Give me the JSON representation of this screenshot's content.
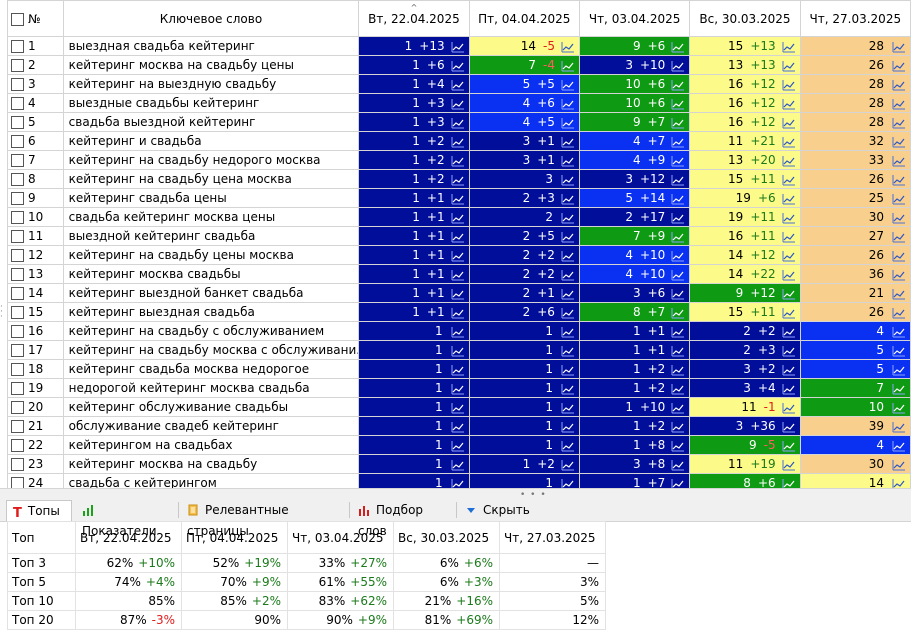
{
  "header": {
    "num_label": "№",
    "keyword_label": "Ключевое слово",
    "dates": [
      "Вт, 22.04.2025",
      "Пт, 04.04.2025",
      "Чт, 03.04.2025",
      "Вс, 30.03.2025",
      "Чт, 27.03.2025"
    ],
    "sort_icon": "sort-up-icon"
  },
  "colors": {
    "darkblue": "#000e9a",
    "blue": "#0a30f2",
    "green": "#0e9b13",
    "yellow": "#fcfb89",
    "orange": "#f8cf8d",
    "change_up": "#1b7a1b",
    "change_down": "#e01b1b"
  },
  "rows": [
    {
      "n": "1",
      "kw": "выездная свадьба кейтеринг",
      "cells": [
        {
          "v": "1",
          "c": "+13",
          "s": "darkblue"
        },
        {
          "v": "14",
          "c": "-5",
          "s": "yellow"
        },
        {
          "v": "9",
          "c": "+6",
          "s": "green"
        },
        {
          "v": "15",
          "c": "+13",
          "s": "yellow"
        },
        {
          "v": "28",
          "c": "",
          "s": "orange"
        }
      ]
    },
    {
      "n": "2",
      "kw": "кейтеринг москва на свадьбу цены",
      "cells": [
        {
          "v": "1",
          "c": "+6",
          "s": "darkblue"
        },
        {
          "v": "7",
          "c": "-4",
          "s": "green"
        },
        {
          "v": "3",
          "c": "+10",
          "s": "darkblue"
        },
        {
          "v": "13",
          "c": "+13",
          "s": "yellow"
        },
        {
          "v": "26",
          "c": "",
          "s": "orange"
        }
      ]
    },
    {
      "n": "3",
      "kw": "кейтеринг на выездную свадьбу",
      "cells": [
        {
          "v": "1",
          "c": "+4",
          "s": "darkblue"
        },
        {
          "v": "5",
          "c": "+5",
          "s": "blue"
        },
        {
          "v": "10",
          "c": "+6",
          "s": "green"
        },
        {
          "v": "16",
          "c": "+12",
          "s": "yellow"
        },
        {
          "v": "28",
          "c": "",
          "s": "orange"
        }
      ]
    },
    {
      "n": "4",
      "kw": "выездные свадьбы кейтеринг",
      "cells": [
        {
          "v": "1",
          "c": "+3",
          "s": "darkblue"
        },
        {
          "v": "4",
          "c": "+6",
          "s": "blue"
        },
        {
          "v": "10",
          "c": "+6",
          "s": "green"
        },
        {
          "v": "16",
          "c": "+12",
          "s": "yellow"
        },
        {
          "v": "28",
          "c": "",
          "s": "orange"
        }
      ]
    },
    {
      "n": "5",
      "kw": "свадьба выездной кейтеринг",
      "cells": [
        {
          "v": "1",
          "c": "+3",
          "s": "darkblue"
        },
        {
          "v": "4",
          "c": "+5",
          "s": "blue"
        },
        {
          "v": "9",
          "c": "+7",
          "s": "green"
        },
        {
          "v": "16",
          "c": "+12",
          "s": "yellow"
        },
        {
          "v": "28",
          "c": "",
          "s": "orange"
        }
      ]
    },
    {
      "n": "6",
      "kw": "кейтеринг и свадьба",
      "cells": [
        {
          "v": "1",
          "c": "+2",
          "s": "darkblue"
        },
        {
          "v": "3",
          "c": "+1",
          "s": "darkblue"
        },
        {
          "v": "4",
          "c": "+7",
          "s": "blue"
        },
        {
          "v": "11",
          "c": "+21",
          "s": "yellow"
        },
        {
          "v": "32",
          "c": "",
          "s": "orange"
        }
      ]
    },
    {
      "n": "7",
      "kw": "кейтеринг на свадьбу недорого москва",
      "cells": [
        {
          "v": "1",
          "c": "+2",
          "s": "darkblue"
        },
        {
          "v": "3",
          "c": "+1",
          "s": "darkblue"
        },
        {
          "v": "4",
          "c": "+9",
          "s": "blue"
        },
        {
          "v": "13",
          "c": "+20",
          "s": "yellow"
        },
        {
          "v": "33",
          "c": "",
          "s": "orange"
        }
      ]
    },
    {
      "n": "8",
      "kw": "кейтеринг на свадьбу цена москва",
      "cells": [
        {
          "v": "1",
          "c": "+2",
          "s": "darkblue"
        },
        {
          "v": "3",
          "c": "",
          "s": "darkblue"
        },
        {
          "v": "3",
          "c": "+12",
          "s": "darkblue"
        },
        {
          "v": "15",
          "c": "+11",
          "s": "yellow"
        },
        {
          "v": "26",
          "c": "",
          "s": "orange"
        }
      ]
    },
    {
      "n": "9",
      "kw": "кейтеринг свадьба цены",
      "cells": [
        {
          "v": "1",
          "c": "+1",
          "s": "darkblue"
        },
        {
          "v": "2",
          "c": "+3",
          "s": "darkblue"
        },
        {
          "v": "5",
          "c": "+14",
          "s": "blue"
        },
        {
          "v": "19",
          "c": "+6",
          "s": "yellow"
        },
        {
          "v": "25",
          "c": "",
          "s": "orange"
        }
      ]
    },
    {
      "n": "10",
      "kw": "свадьба кейтеринг москва цены",
      "cells": [
        {
          "v": "1",
          "c": "+1",
          "s": "darkblue"
        },
        {
          "v": "2",
          "c": "",
          "s": "darkblue"
        },
        {
          "v": "2",
          "c": "+17",
          "s": "darkblue"
        },
        {
          "v": "19",
          "c": "+11",
          "s": "yellow"
        },
        {
          "v": "30",
          "c": "",
          "s": "orange"
        }
      ]
    },
    {
      "n": "11",
      "kw": "выездной кейтеринг свадьба",
      "cells": [
        {
          "v": "1",
          "c": "+1",
          "s": "darkblue"
        },
        {
          "v": "2",
          "c": "+5",
          "s": "darkblue"
        },
        {
          "v": "7",
          "c": "+9",
          "s": "green"
        },
        {
          "v": "16",
          "c": "+11",
          "s": "yellow"
        },
        {
          "v": "27",
          "c": "",
          "s": "orange"
        }
      ]
    },
    {
      "n": "12",
      "kw": "кейтеринг на свадьбу цены москва",
      "cells": [
        {
          "v": "1",
          "c": "+1",
          "s": "darkblue"
        },
        {
          "v": "2",
          "c": "+2",
          "s": "darkblue"
        },
        {
          "v": "4",
          "c": "+10",
          "s": "blue"
        },
        {
          "v": "14",
          "c": "+12",
          "s": "yellow"
        },
        {
          "v": "26",
          "c": "",
          "s": "orange"
        }
      ]
    },
    {
      "n": "13",
      "kw": "кейтеринг москва свадьбы",
      "cells": [
        {
          "v": "1",
          "c": "+1",
          "s": "darkblue"
        },
        {
          "v": "2",
          "c": "+2",
          "s": "darkblue"
        },
        {
          "v": "4",
          "c": "+10",
          "s": "blue"
        },
        {
          "v": "14",
          "c": "+22",
          "s": "yellow"
        },
        {
          "v": "36",
          "c": "",
          "s": "orange"
        }
      ]
    },
    {
      "n": "14",
      "kw": "кейтеринг выездной банкет свадьба",
      "cells": [
        {
          "v": "1",
          "c": "+1",
          "s": "darkblue"
        },
        {
          "v": "2",
          "c": "+1",
          "s": "darkblue"
        },
        {
          "v": "3",
          "c": "+6",
          "s": "darkblue"
        },
        {
          "v": "9",
          "c": "+12",
          "s": "green"
        },
        {
          "v": "21",
          "c": "",
          "s": "orange"
        }
      ]
    },
    {
      "n": "15",
      "kw": "кейтеринг выездная свадьба",
      "cells": [
        {
          "v": "1",
          "c": "+1",
          "s": "darkblue"
        },
        {
          "v": "2",
          "c": "+6",
          "s": "darkblue"
        },
        {
          "v": "8",
          "c": "+7",
          "s": "green"
        },
        {
          "v": "15",
          "c": "+11",
          "s": "yellow"
        },
        {
          "v": "26",
          "c": "",
          "s": "orange"
        }
      ]
    },
    {
      "n": "16",
      "kw": "кейтеринг на свадьбу с обслуживанием",
      "cells": [
        {
          "v": "1",
          "c": "",
          "s": "darkblue"
        },
        {
          "v": "1",
          "c": "",
          "s": "darkblue"
        },
        {
          "v": "1",
          "c": "+1",
          "s": "darkblue"
        },
        {
          "v": "2",
          "c": "+2",
          "s": "darkblue"
        },
        {
          "v": "4",
          "c": "",
          "s": "blue"
        }
      ]
    },
    {
      "n": "17",
      "kw": "кейтеринг на свадьбу москва с обслуживани...",
      "cells": [
        {
          "v": "1",
          "c": "",
          "s": "darkblue"
        },
        {
          "v": "1",
          "c": "",
          "s": "darkblue"
        },
        {
          "v": "1",
          "c": "+1",
          "s": "darkblue"
        },
        {
          "v": "2",
          "c": "+3",
          "s": "darkblue"
        },
        {
          "v": "5",
          "c": "",
          "s": "blue"
        }
      ]
    },
    {
      "n": "18",
      "kw": "кейтеринг свадьба москва недорогое",
      "cells": [
        {
          "v": "1",
          "c": "",
          "s": "darkblue"
        },
        {
          "v": "1",
          "c": "",
          "s": "darkblue"
        },
        {
          "v": "1",
          "c": "+2",
          "s": "darkblue"
        },
        {
          "v": "3",
          "c": "+2",
          "s": "darkblue"
        },
        {
          "v": "5",
          "c": "",
          "s": "blue"
        }
      ]
    },
    {
      "n": "19",
      "kw": "недорогой кейтеринг москва свадьба",
      "cells": [
        {
          "v": "1",
          "c": "",
          "s": "darkblue"
        },
        {
          "v": "1",
          "c": "",
          "s": "darkblue"
        },
        {
          "v": "1",
          "c": "+2",
          "s": "darkblue"
        },
        {
          "v": "3",
          "c": "+4",
          "s": "darkblue"
        },
        {
          "v": "7",
          "c": "",
          "s": "green"
        }
      ]
    },
    {
      "n": "20",
      "kw": "кейтеринг обслуживание свадьбы",
      "cells": [
        {
          "v": "1",
          "c": "",
          "s": "darkblue"
        },
        {
          "v": "1",
          "c": "",
          "s": "darkblue"
        },
        {
          "v": "1",
          "c": "+10",
          "s": "darkblue"
        },
        {
          "v": "11",
          "c": "-1",
          "s": "yellow"
        },
        {
          "v": "10",
          "c": "",
          "s": "green"
        }
      ]
    },
    {
      "n": "21",
      "kw": "обслуживание свадеб кейтеринг",
      "cells": [
        {
          "v": "1",
          "c": "",
          "s": "darkblue"
        },
        {
          "v": "1",
          "c": "",
          "s": "darkblue"
        },
        {
          "v": "1",
          "c": "+2",
          "s": "darkblue"
        },
        {
          "v": "3",
          "c": "+36",
          "s": "darkblue"
        },
        {
          "v": "39",
          "c": "",
          "s": "orange"
        }
      ]
    },
    {
      "n": "22",
      "kw": "кейтерингом на свадьбах",
      "cells": [
        {
          "v": "1",
          "c": "",
          "s": "darkblue"
        },
        {
          "v": "1",
          "c": "",
          "s": "darkblue"
        },
        {
          "v": "1",
          "c": "+8",
          "s": "darkblue"
        },
        {
          "v": "9",
          "c": "-5",
          "s": "green"
        },
        {
          "v": "4",
          "c": "",
          "s": "blue"
        }
      ]
    },
    {
      "n": "23",
      "kw": "кейтеринг москва на свадьбу",
      "cells": [
        {
          "v": "1",
          "c": "",
          "s": "darkblue"
        },
        {
          "v": "1",
          "c": "+2",
          "s": "darkblue"
        },
        {
          "v": "3",
          "c": "+8",
          "s": "darkblue"
        },
        {
          "v": "11",
          "c": "+19",
          "s": "yellow"
        },
        {
          "v": "30",
          "c": "",
          "s": "orange"
        }
      ]
    },
    {
      "n": "24",
      "kw": "свадьба с кейтерингом",
      "cells": [
        {
          "v": "1",
          "c": "",
          "s": "darkblue"
        },
        {
          "v": "1",
          "c": "",
          "s": "darkblue"
        },
        {
          "v": "1",
          "c": "+7",
          "s": "darkblue"
        },
        {
          "v": "8",
          "c": "+6",
          "s": "green"
        },
        {
          "v": "14",
          "c": "",
          "s": "yellow"
        }
      ]
    }
  ],
  "tabs": [
    {
      "label": "Топы",
      "icon": "letter-t-icon",
      "active": true
    },
    {
      "label": "Показатели",
      "icon": "bar-chart-icon",
      "active": false
    },
    {
      "label": "Релевантные страницы",
      "icon": "document-icon",
      "active": false
    },
    {
      "label": "Подбор слов",
      "icon": "column-chart-icon",
      "active": false
    },
    {
      "label": "Скрыть",
      "icon": "chevron-down-icon",
      "active": false
    }
  ],
  "stats": {
    "header_label": "Топ",
    "dates": [
      "Вт, 22.04.2025",
      "Пт, 04.04.2025",
      "Чт, 03.04.2025",
      "Вс, 30.03.2025",
      "Чт, 27.03.2025"
    ],
    "rows": [
      {
        "label": "Топ 3",
        "cells": [
          {
            "v": "62%",
            "c": "+10%"
          },
          {
            "v": "52%",
            "c": "+19%"
          },
          {
            "v": "33%",
            "c": "+27%"
          },
          {
            "v": "6%",
            "c": "+6%"
          },
          {
            "v": "—",
            "c": ""
          }
        ]
      },
      {
        "label": "Топ 5",
        "cells": [
          {
            "v": "74%",
            "c": "+4%"
          },
          {
            "v": "70%",
            "c": "+9%"
          },
          {
            "v": "61%",
            "c": "+55%"
          },
          {
            "v": "6%",
            "c": "+3%"
          },
          {
            "v": "3%",
            "c": ""
          }
        ]
      },
      {
        "label": "Топ 10",
        "cells": [
          {
            "v": "85%",
            "c": ""
          },
          {
            "v": "85%",
            "c": "+2%"
          },
          {
            "v": "83%",
            "c": "+62%"
          },
          {
            "v": "21%",
            "c": "+16%"
          },
          {
            "v": "5%",
            "c": ""
          }
        ]
      },
      {
        "label": "Топ 20",
        "cells": [
          {
            "v": "87%",
            "c": "-3%"
          },
          {
            "v": "90%",
            "c": ""
          },
          {
            "v": "90%",
            "c": "+9%"
          },
          {
            "v": "81%",
            "c": "+69%"
          },
          {
            "v": "12%",
            "c": ""
          }
        ]
      }
    ]
  }
}
